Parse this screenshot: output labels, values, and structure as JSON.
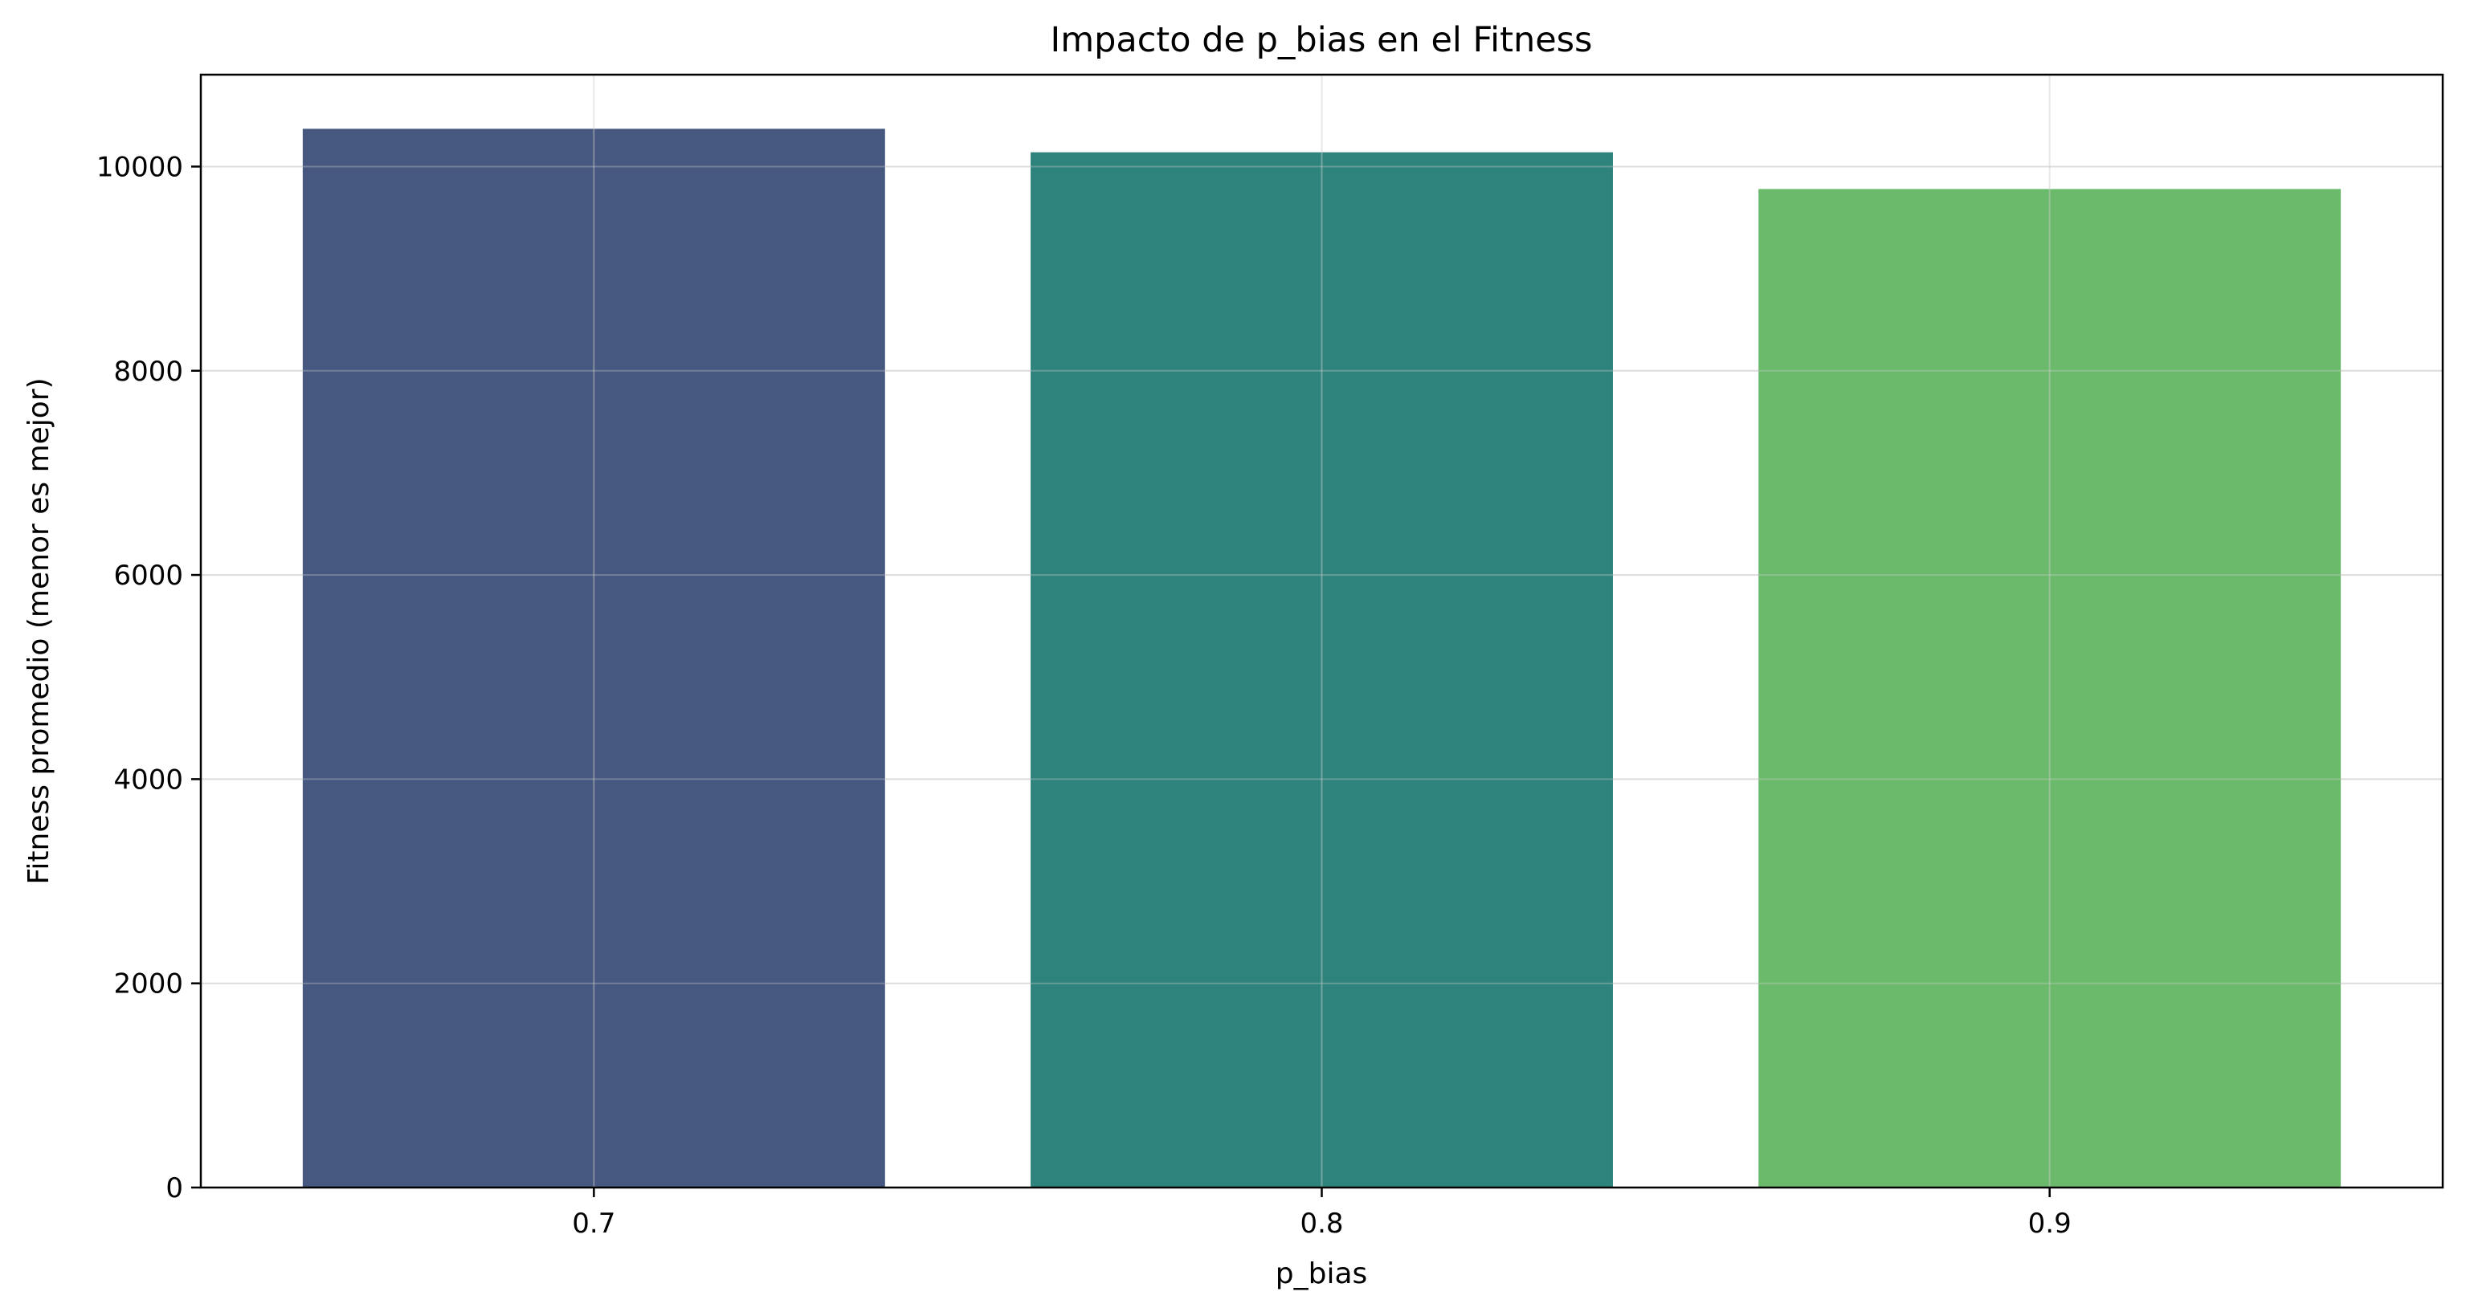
{
  "chart_data": {
    "type": "bar",
    "title": "Impacto de p_bias en el Fitness",
    "xlabel": "p_bias",
    "ylabel": "Fitness promedio (menor es mejor)",
    "categories": [
      "0.7",
      "0.8",
      "0.9"
    ],
    "values": [
      10370,
      10140,
      9780
    ],
    "colors": [
      "#46587f",
      "#2e837c",
      "#6bba6b"
    ],
    "ylim": [
      0,
      10900
    ],
    "yticks": [
      0,
      2000,
      4000,
      6000,
      8000,
      10000
    ],
    "ytick_labels": [
      "0",
      "2000",
      "4000",
      "6000",
      "8000",
      "10000"
    ],
    "grid": true,
    "legend": "none"
  }
}
